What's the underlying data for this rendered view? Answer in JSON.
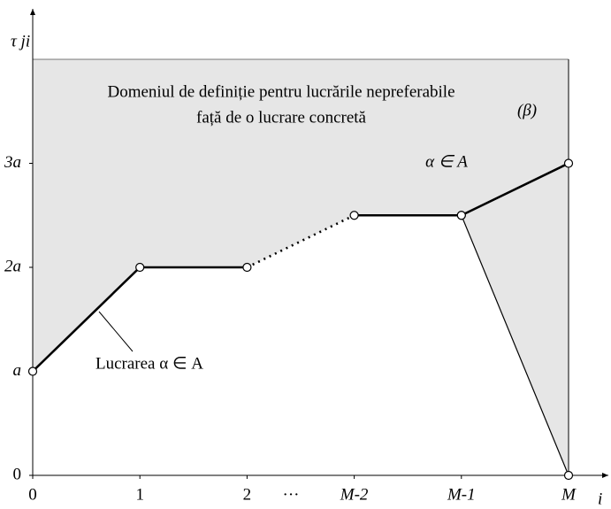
{
  "chart_data": {
    "type": "line",
    "y_label": "τ ji",
    "x_label": "i",
    "categories": [
      "0",
      "1",
      "2",
      "M-2",
      "M-1",
      "M"
    ],
    "ellipsis": "···",
    "series": [
      {
        "style": "bold",
        "markers": true,
        "values": [
          1,
          2,
          2,
          null,
          null,
          null
        ]
      },
      {
        "style": "dotted",
        "markers": false,
        "values": [
          null,
          null,
          2,
          2.5,
          null,
          null
        ]
      },
      {
        "style": "bold",
        "markers": true,
        "values": [
          null,
          null,
          null,
          2.5,
          2.5,
          3
        ]
      },
      {
        "style": "thin",
        "markers": true,
        "values": [
          null,
          null,
          null,
          null,
          2.5,
          0
        ]
      }
    ],
    "ylim": [
      0,
      4
    ],
    "yticks": [
      0,
      {
        "value": 1,
        "label": "a"
      },
      {
        "value": 2,
        "label": "2a"
      },
      {
        "value": 3,
        "label": "3a"
      }
    ],
    "fill_color": "#e6e6e6",
    "annotations": {
      "region_line1": "Domeniul de definiție pentru lucrările nepreferabile",
      "region_line2": "față de o lucrare concretă",
      "beta": "(β)",
      "alpha": "α ∈ A",
      "lucrarea": "Lucrarea  α ∈ A"
    }
  }
}
